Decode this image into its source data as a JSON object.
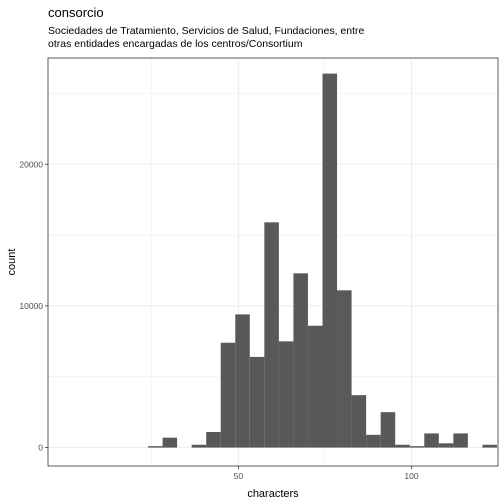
{
  "chart_data": {
    "type": "bar",
    "title": "consorcio",
    "subtitle_lines": [
      "Sociedades de Tratamiento, Servicios de Salud, Fundaciones, entre",
      "otras entidades encargadas de los centros/Consortium"
    ],
    "xlabel": "characters",
    "ylabel": "count",
    "x_ticks": [
      50,
      100
    ],
    "y_ticks": [
      0,
      10000,
      20000
    ],
    "xlim": [
      -5,
      125
    ],
    "ylim": [
      -1300,
      27500
    ],
    "grid": true,
    "bin_width": 4.2,
    "bins": [
      {
        "x": 26.0,
        "count": 100
      },
      {
        "x": 30.2,
        "count": 700
      },
      {
        "x": 34.4,
        "count": 0
      },
      {
        "x": 38.6,
        "count": 200
      },
      {
        "x": 42.8,
        "count": 1100
      },
      {
        "x": 47.0,
        "count": 7400
      },
      {
        "x": 51.2,
        "count": 9400
      },
      {
        "x": 55.4,
        "count": 6400
      },
      {
        "x": 59.6,
        "count": 15900
      },
      {
        "x": 63.8,
        "count": 7500
      },
      {
        "x": 68.0,
        "count": 12300
      },
      {
        "x": 72.2,
        "count": 8600
      },
      {
        "x": 76.4,
        "count": 26400
      },
      {
        "x": 80.6,
        "count": 11100
      },
      {
        "x": 84.8,
        "count": 3700
      },
      {
        "x": 89.0,
        "count": 900
      },
      {
        "x": 93.2,
        "count": 2500
      },
      {
        "x": 97.4,
        "count": 200
      },
      {
        "x": 101.6,
        "count": 100
      },
      {
        "x": 105.8,
        "count": 1000
      },
      {
        "x": 110.0,
        "count": 300
      },
      {
        "x": 114.2,
        "count": 1000
      },
      {
        "x": 118.4,
        "count": 0
      },
      {
        "x": 122.6,
        "count": 200
      }
    ]
  }
}
